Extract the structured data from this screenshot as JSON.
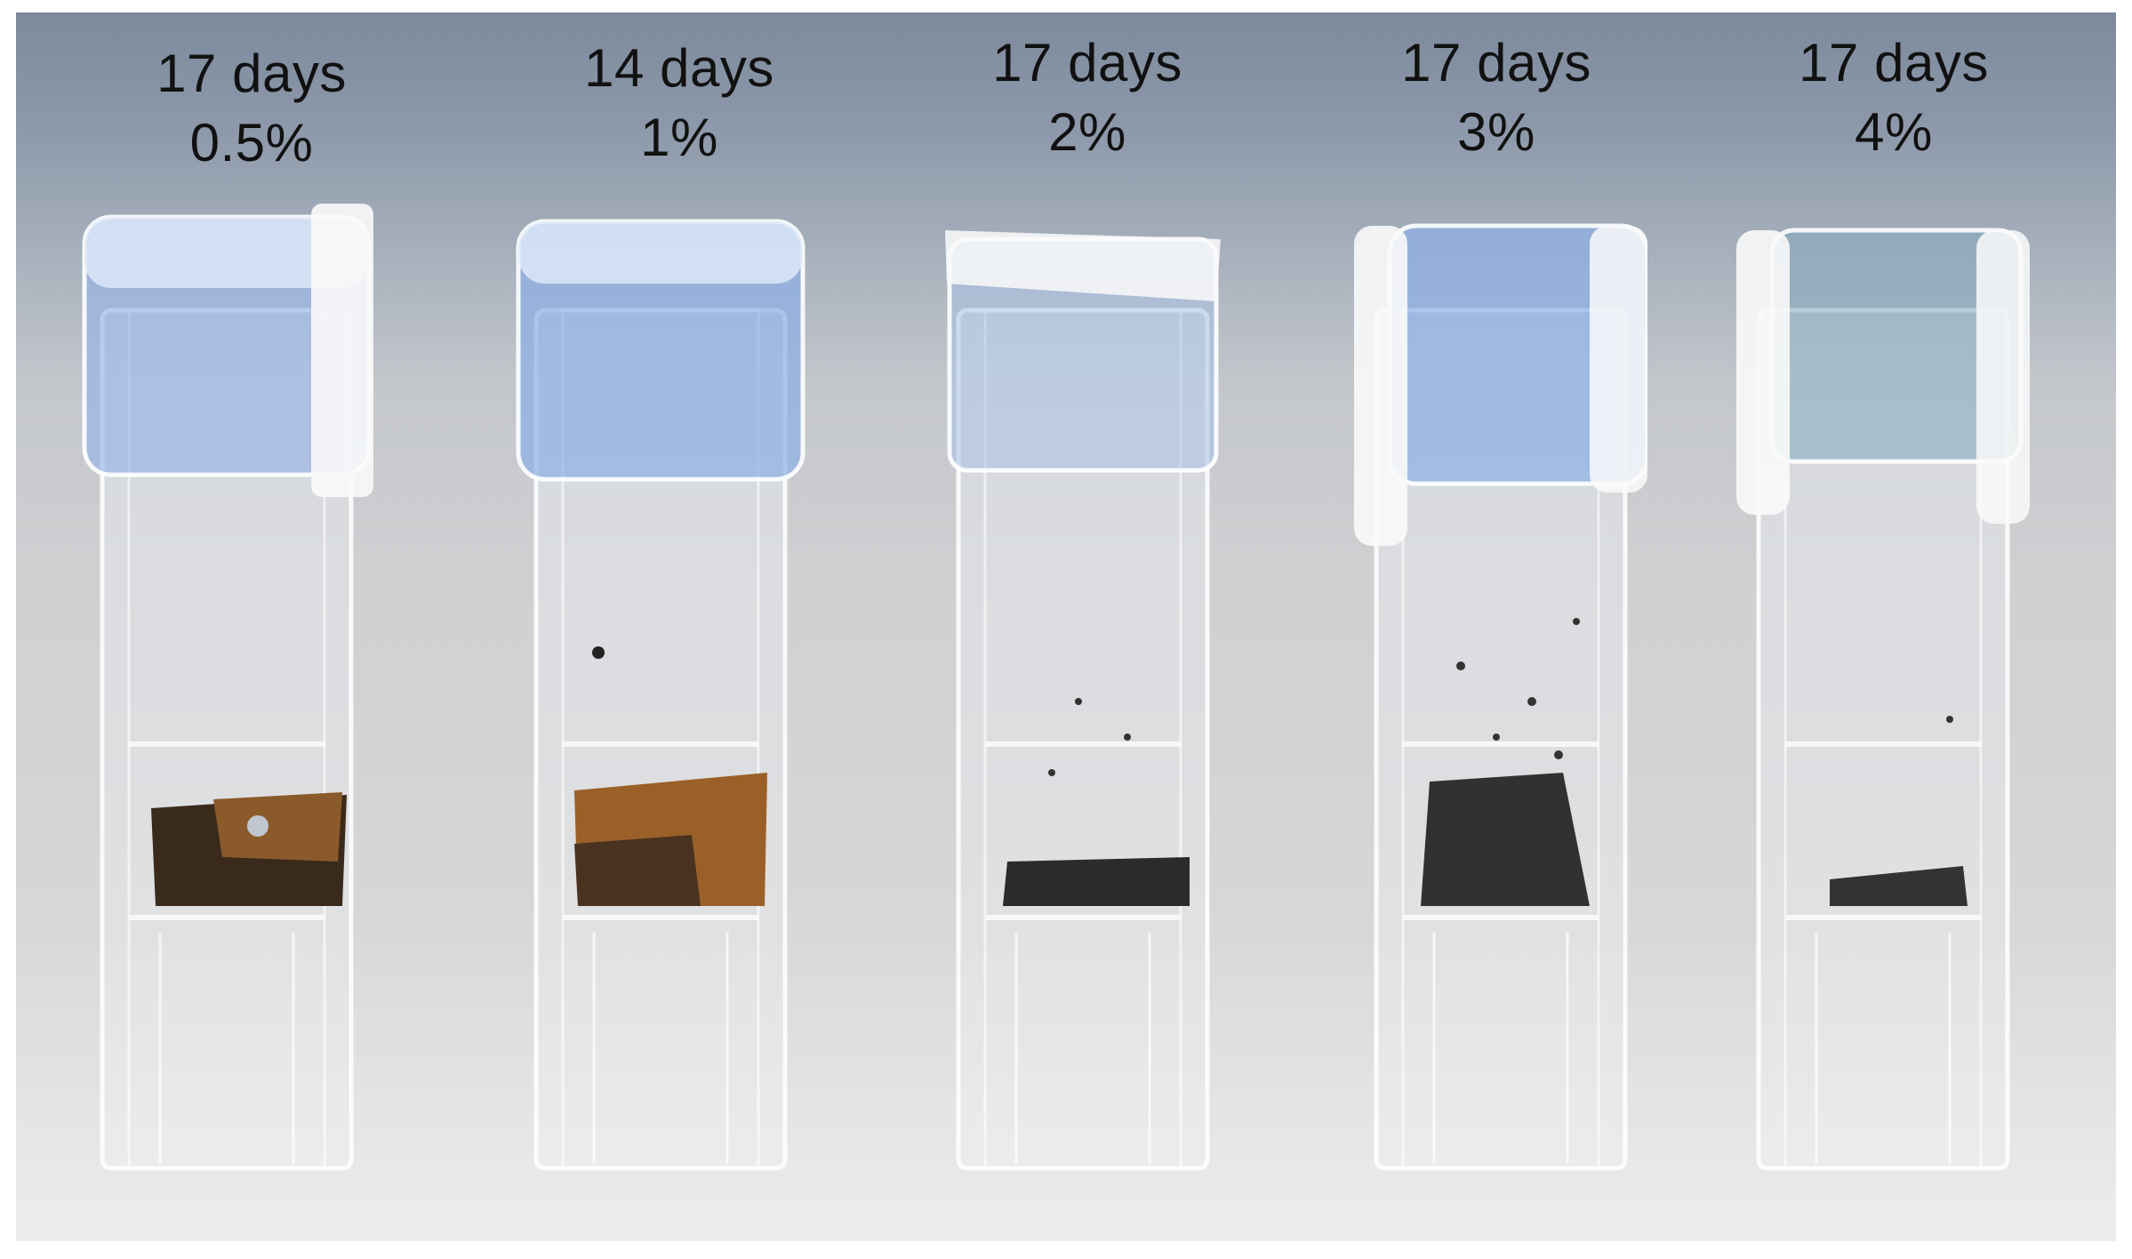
{
  "labels": [
    {
      "days": "17 days",
      "percent": "0.5%"
    },
    {
      "days": "14 days",
      "percent": "1%"
    },
    {
      "days": "17 days",
      "percent": "2%"
    },
    {
      "days": "17 days",
      "percent": "3%"
    },
    {
      "days": "17 days",
      "percent": "4%"
    }
  ],
  "colors": {
    "background_top": "#7d8a9c",
    "background_bottom": "#e6e6e6",
    "cap_blue": "#8fb0e0",
    "sample_brown": "#7a4a1e",
    "sample_black": "#2a2a2a"
  }
}
